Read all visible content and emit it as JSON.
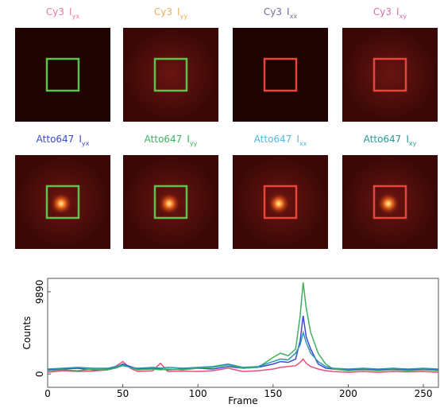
{
  "panels": [
    {
      "dye": "Cy3",
      "channel": "I",
      "sub": "yx",
      "color": "#e87a9a",
      "box": "#5cc24a"
    },
    {
      "dye": "Cy3",
      "channel": "I",
      "sub": "yy",
      "color": "#e8b060",
      "box": "#5cc24a"
    },
    {
      "dye": "Cy3",
      "channel": "I",
      "sub": "xx",
      "color": "#7a6a9a",
      "box": "#e8443a"
    },
    {
      "dye": "Cy3",
      "channel": "I",
      "sub": "xy",
      "color": "#d070b0",
      "box": "#e8443a"
    },
    {
      "dye": "Atto647",
      "channel": "I",
      "sub": "yx",
      "color": "#3a4ad0",
      "box": "#5cc24a"
    },
    {
      "dye": "Atto647",
      "channel": "I",
      "sub": "yy",
      "color": "#40b060",
      "box": "#5cc24a"
    },
    {
      "dye": "Atto647",
      "channel": "I",
      "sub": "xx",
      "color": "#50b8e8",
      "box": "#e8443a"
    },
    {
      "dye": "Atto647",
      "channel": "I",
      "sub": "xy",
      "color": "#2a9a9a",
      "box": "#e8443a"
    }
  ],
  "chart_data": {
    "type": "line",
    "xlabel": "Frame",
    "ylabel": "Counts",
    "xlim": [
      0,
      260
    ],
    "xticks": [
      0,
      50,
      100,
      150,
      200,
      250
    ],
    "ylim": [
      -1600,
      11500
    ],
    "yticks": [
      0,
      9890
    ],
    "x": [
      0,
      10,
      20,
      30,
      40,
      45,
      50,
      55,
      60,
      70,
      75,
      80,
      90,
      100,
      110,
      120,
      130,
      140,
      150,
      155,
      160,
      165,
      168,
      170,
      172,
      175,
      180,
      185,
      190,
      200,
      210,
      220,
      230,
      240,
      250,
      260
    ],
    "series": [
      {
        "color": "#e8507a",
        "values": [
          200,
          400,
          300,
          350,
          500,
          900,
          1500,
          700,
          300,
          400,
          1300,
          300,
          350,
          300,
          400,
          700,
          300,
          400,
          600,
          800,
          900,
          1000,
          1400,
          1800,
          1300,
          900,
          600,
          400,
          300,
          200,
          300,
          200,
          300,
          250,
          300,
          200
        ]
      },
      {
        "color": "#3a4ad0",
        "values": [
          500,
          600,
          700,
          500,
          600,
          800,
          1200,
          900,
          600,
          700,
          600,
          500,
          600,
          700,
          600,
          900,
          700,
          800,
          1200,
          1500,
          1400,
          1800,
          4000,
          7000,
          4500,
          3000,
          1200,
          700,
          600,
          500,
          600,
          500,
          600,
          500,
          600,
          500
        ]
      },
      {
        "color": "#40b060",
        "values": [
          400,
          500,
          400,
          600,
          500,
          700,
          1000,
          800,
          500,
          600,
          500,
          600,
          500,
          700,
          800,
          1100,
          700,
          800,
          2000,
          2500,
          2200,
          3000,
          7000,
          11000,
          8000,
          5000,
          2500,
          1200,
          600,
          400,
          500,
          400,
          500,
          400,
          500,
          400
        ]
      },
      {
        "color": "#2a9aaa",
        "values": [
          600,
          700,
          800,
          700,
          700,
          900,
          1100,
          800,
          700,
          800,
          700,
          800,
          700,
          800,
          900,
          1200,
          800,
          900,
          1500,
          1800,
          1700,
          2500,
          3500,
          5000,
          3800,
          2500,
          1500,
          900,
          700,
          600,
          700,
          600,
          700,
          600,
          700,
          600
        ]
      }
    ]
  }
}
